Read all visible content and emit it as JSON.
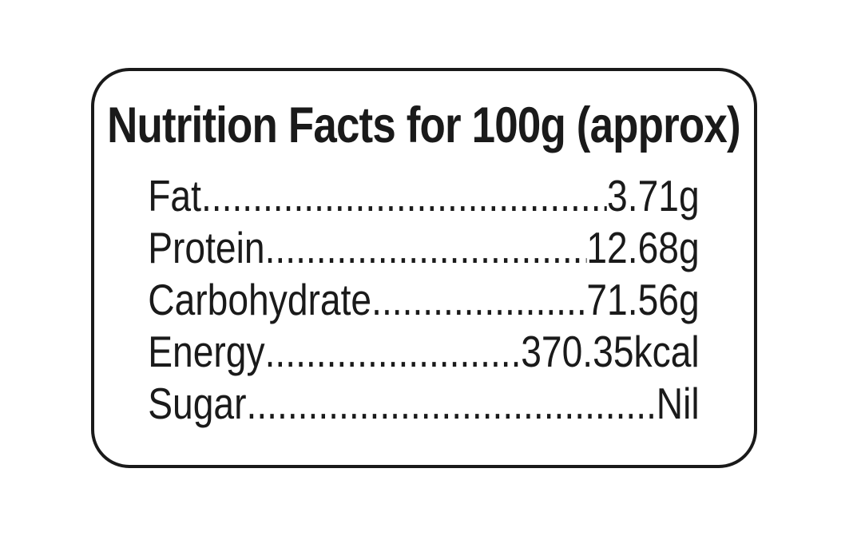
{
  "colors": {
    "text": "#1a1a1a",
    "border": "#1a1a1a",
    "background": "#ffffff"
  },
  "label": {
    "title": "Nutrition Facts for 100g (approx)",
    "leader_dots": "........................................................................................................................................................",
    "rows": [
      {
        "name": "Fat",
        "value": "3.71g"
      },
      {
        "name": "Protein",
        "value": "12.68g"
      },
      {
        "name": "Carbohydrate",
        "value": "71.56g"
      },
      {
        "name": "Energy",
        "value": "370.35kcal"
      },
      {
        "name": "Sugar",
        "value": "Nil"
      }
    ]
  }
}
